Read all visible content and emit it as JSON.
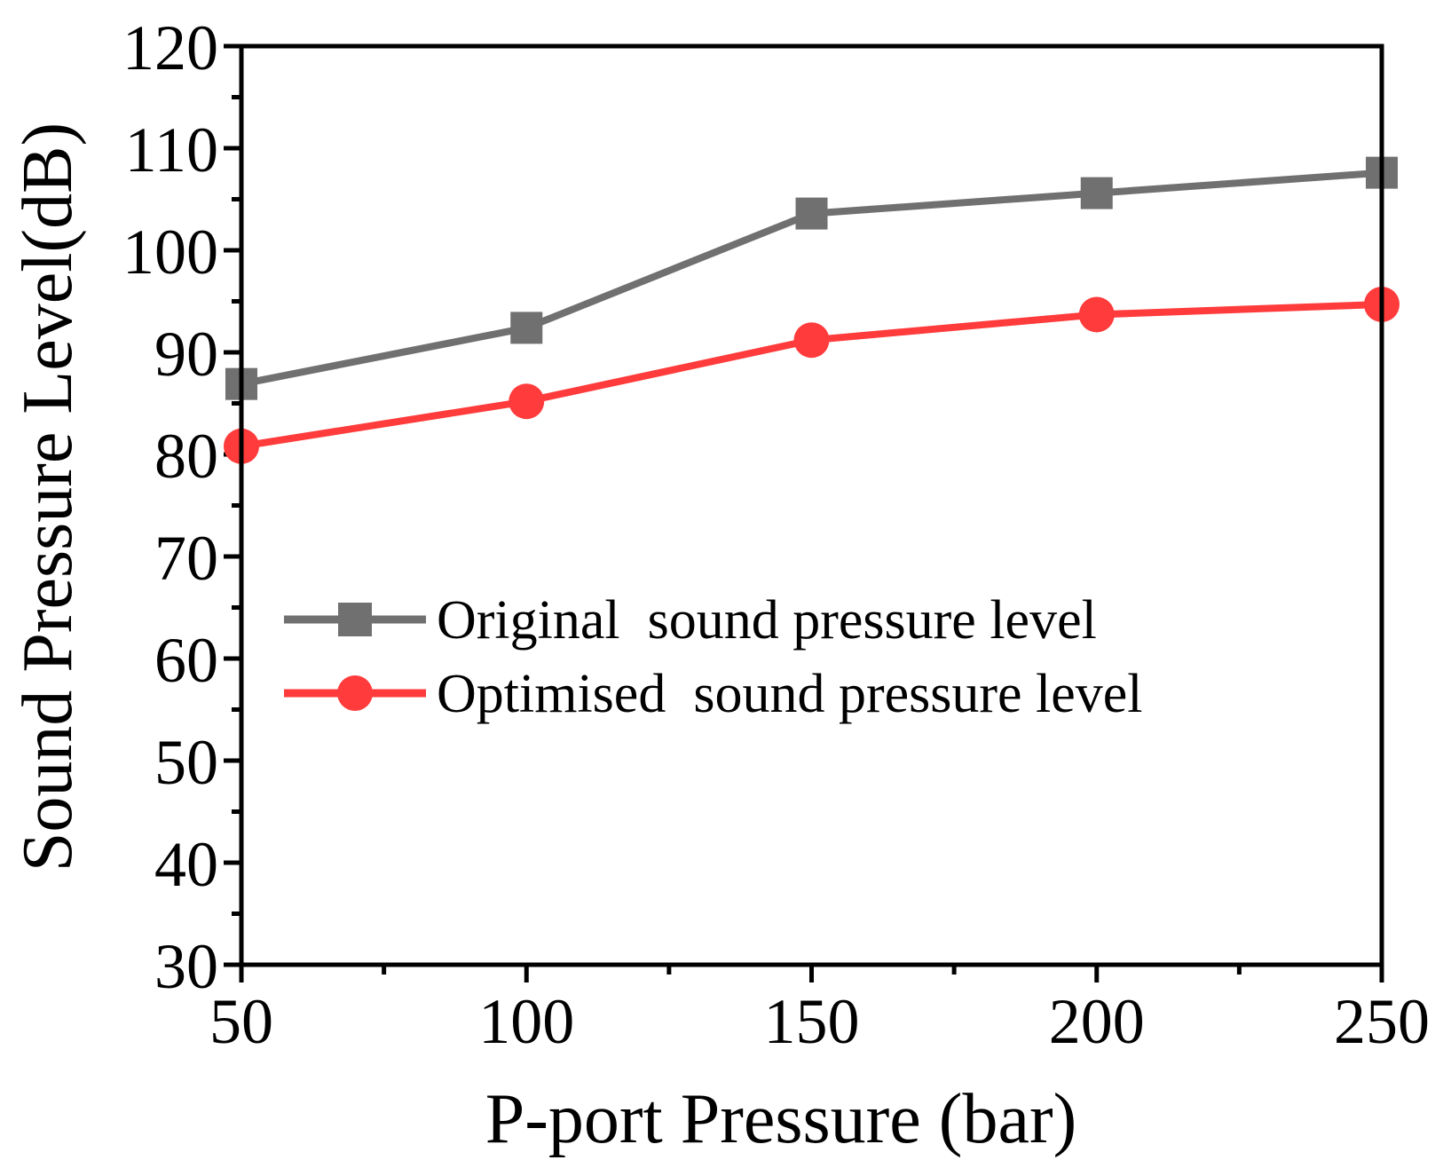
{
  "chart_data": {
    "type": "line",
    "title": "",
    "xlabel": "P-port Pressure (bar)",
    "ylabel": "Sound Pressure Level(dB)",
    "xlim": [
      50,
      250
    ],
    "ylim": [
      30,
      120
    ],
    "xticks": [
      50,
      100,
      150,
      200,
      250
    ],
    "yticks": [
      30,
      40,
      50,
      60,
      70,
      80,
      90,
      100,
      110,
      120
    ],
    "grid": false,
    "legend_position": "center-left",
    "series": [
      {
        "name": "Original  sound pressure level",
        "color": "#707070",
        "marker": "square",
        "x": [
          50,
          100,
          150,
          200,
          250
        ],
        "values": [
          86.9,
          92.4,
          103.6,
          105.6,
          107.6
        ]
      },
      {
        "name": "Optimised  sound pressure level",
        "color": "#ff3b3b",
        "marker": "circle",
        "x": [
          50,
          100,
          150,
          200,
          250
        ],
        "values": [
          80.8,
          85.2,
          91.2,
          93.7,
          94.7
        ]
      }
    ]
  }
}
